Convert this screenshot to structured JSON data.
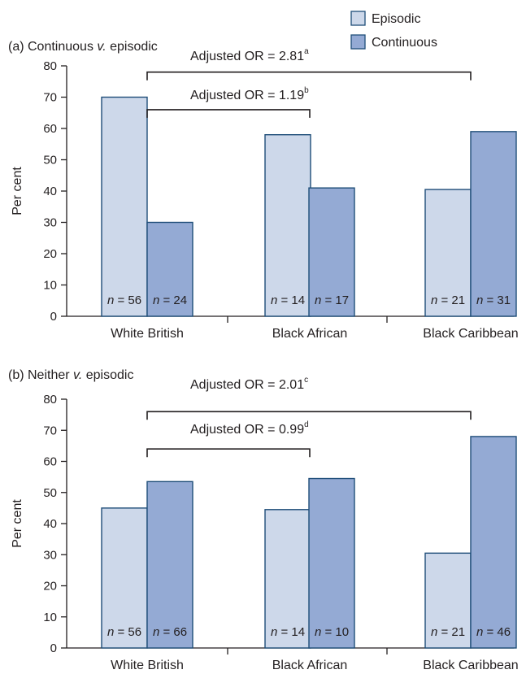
{
  "legend": {
    "items": [
      {
        "label": "Episodic",
        "color": "#cdd8ea"
      },
      {
        "label": "Continuous",
        "color": "#94aad4"
      }
    ]
  },
  "chart_data": [
    {
      "type": "bar",
      "title": "(a) Continuous v. episodic",
      "title_parts": [
        "(a) Continuous ",
        "v.",
        " episodic"
      ],
      "ylabel": "Per cent",
      "xlabel": "",
      "ylim": [
        0,
        80
      ],
      "yticks": [
        0,
        10,
        20,
        30,
        40,
        50,
        60,
        70,
        80
      ],
      "categories": [
        "White British",
        "Black African",
        "Black Caribbean"
      ],
      "series": [
        {
          "name": "Episodic",
          "color": "#cdd8ea",
          "values": [
            70,
            58,
            40.5
          ],
          "n": [
            56,
            14,
            21
          ]
        },
        {
          "name": "Continuous",
          "color": "#94aad4",
          "values": [
            30,
            41,
            59
          ],
          "n": [
            24,
            17,
            31
          ]
        }
      ],
      "annotations": [
        {
          "text": "Adjusted OR = 2.81",
          "sup": "a",
          "from": "White British",
          "to": "Black Caribbean",
          "level": 78
        },
        {
          "text": "Adjusted OR = 1.19",
          "sup": "b",
          "from": "White British",
          "to": "Black African",
          "level": 66
        }
      ]
    },
    {
      "type": "bar",
      "title": "(b) Neither v. episodic",
      "title_parts": [
        "(b) Neither ",
        "v.",
        " episodic"
      ],
      "ylabel": "Per cent",
      "xlabel": "",
      "ylim": [
        0,
        80
      ],
      "yticks": [
        0,
        10,
        20,
        30,
        40,
        50,
        60,
        70,
        80
      ],
      "categories": [
        "White British",
        "Black African",
        "Black Caribbean"
      ],
      "series": [
        {
          "name": "Episodic",
          "color": "#cdd8ea",
          "values": [
            45,
            44.5,
            30.5
          ],
          "n": [
            56,
            14,
            21
          ]
        },
        {
          "name": "Continuous",
          "color": "#94aad4",
          "values": [
            53.5,
            54.5,
            68
          ],
          "n": [
            66,
            10,
            46
          ]
        }
      ],
      "annotations": [
        {
          "text": "Adjusted OR = 2.01",
          "sup": "c",
          "from": "White British",
          "to": "Black Caribbean",
          "level": 76
        },
        {
          "text": "Adjusted OR = 0.99",
          "sup": "d",
          "from": "White British",
          "to": "Black African",
          "level": 64
        }
      ]
    }
  ]
}
